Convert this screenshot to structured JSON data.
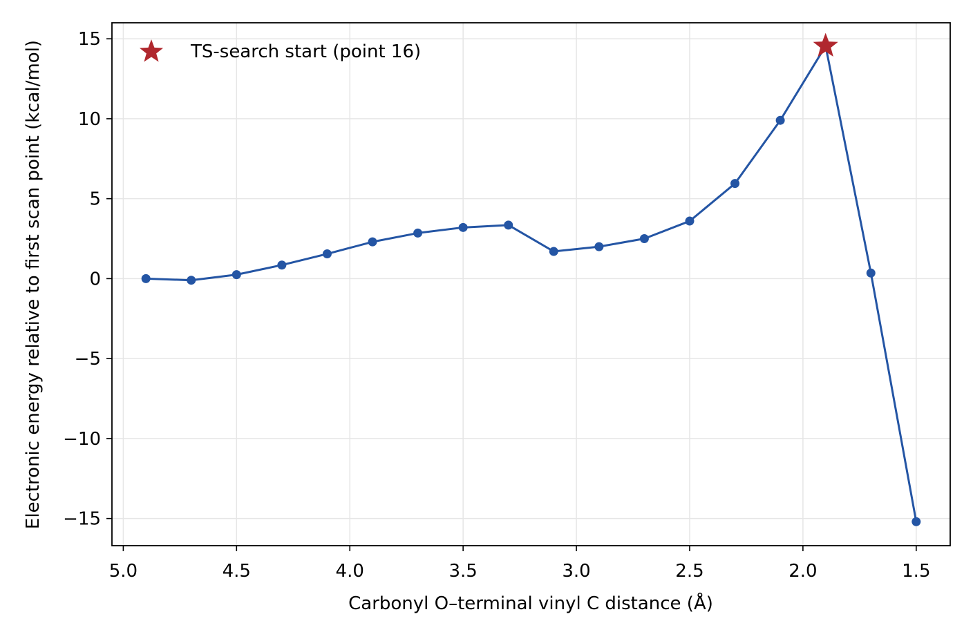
{
  "chart_data": {
    "type": "line",
    "title": "",
    "xlabel": "Carbonyl O–terminal vinyl C distance (Å)",
    "ylabel": "Electronic energy relative to first scan point (kcal/mol)",
    "xlim": [
      5.05,
      1.35
    ],
    "ylim": [
      -16.7,
      16.0
    ],
    "x_inverted": true,
    "grid": true,
    "legend_position": "top-left",
    "x_ticks": [
      5.0,
      4.5,
      4.0,
      3.5,
      3.0,
      2.5,
      2.0,
      1.5
    ],
    "x_tick_labels": [
      "5.0",
      "4.5",
      "4.0",
      "3.5",
      "3.0",
      "2.5",
      "2.0",
      "1.5"
    ],
    "y_ticks": [
      15,
      10,
      5,
      0,
      -5,
      -10,
      -15
    ],
    "y_tick_labels": [
      "15",
      "10",
      "5",
      "0",
      "−5",
      "−10",
      "−15"
    ],
    "series": [
      {
        "color": "#2455a4",
        "marker": "circle",
        "x": [
          4.9,
          4.7,
          4.5,
          4.3,
          4.1,
          3.9,
          3.7,
          3.5,
          3.3,
          3.1,
          2.9,
          2.7,
          2.5,
          2.3,
          2.1,
          1.9,
          1.7,
          1.5
        ],
        "y": [
          0.0,
          -0.1,
          0.25,
          0.85,
          1.55,
          2.3,
          2.85,
          3.2,
          3.35,
          1.7,
          2.0,
          2.5,
          3.6,
          5.95,
          9.9,
          14.55,
          0.35,
          -15.2
        ]
      }
    ],
    "highlight": {
      "name": "TS-search start (point 16)",
      "color": "#b0282e",
      "marker": "star",
      "x": 1.9,
      "y": 14.55
    }
  }
}
